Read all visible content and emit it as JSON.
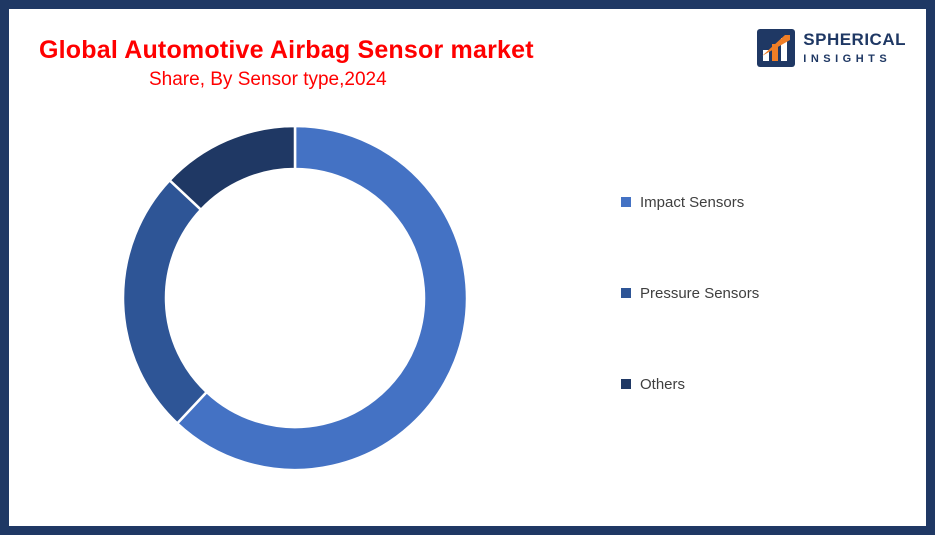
{
  "title": {
    "line1": "Global Automotive Airbag Sensor market",
    "line2": "Share, By Sensor type,2024"
  },
  "logo": {
    "name": "SPHERICAL",
    "sub": "INSIGHTS"
  },
  "chart_data": {
    "type": "pie",
    "subtype": "donut",
    "title": "Global Automotive Airbag Sensor market Share, By Sensor type, 2024",
    "categories": [
      "Impact Sensors",
      "Pressure Sensors",
      "Others"
    ],
    "values": [
      62,
      25,
      13
    ],
    "colors": [
      "#4472C4",
      "#2E5596",
      "#1F3864"
    ],
    "start_angle_deg": 0,
    "direction": "clockwise",
    "donut_hole_ratio": 0.75,
    "legend_position": "right",
    "data_labels": false
  },
  "colors": {
    "frame_border": "#1F3864",
    "title_text": "#FF0000",
    "legend_text": "#3F3F3F",
    "slice_separator": "#FFFFFF",
    "logo_navy": "#1F3864",
    "logo_orange": "#F07E26"
  }
}
